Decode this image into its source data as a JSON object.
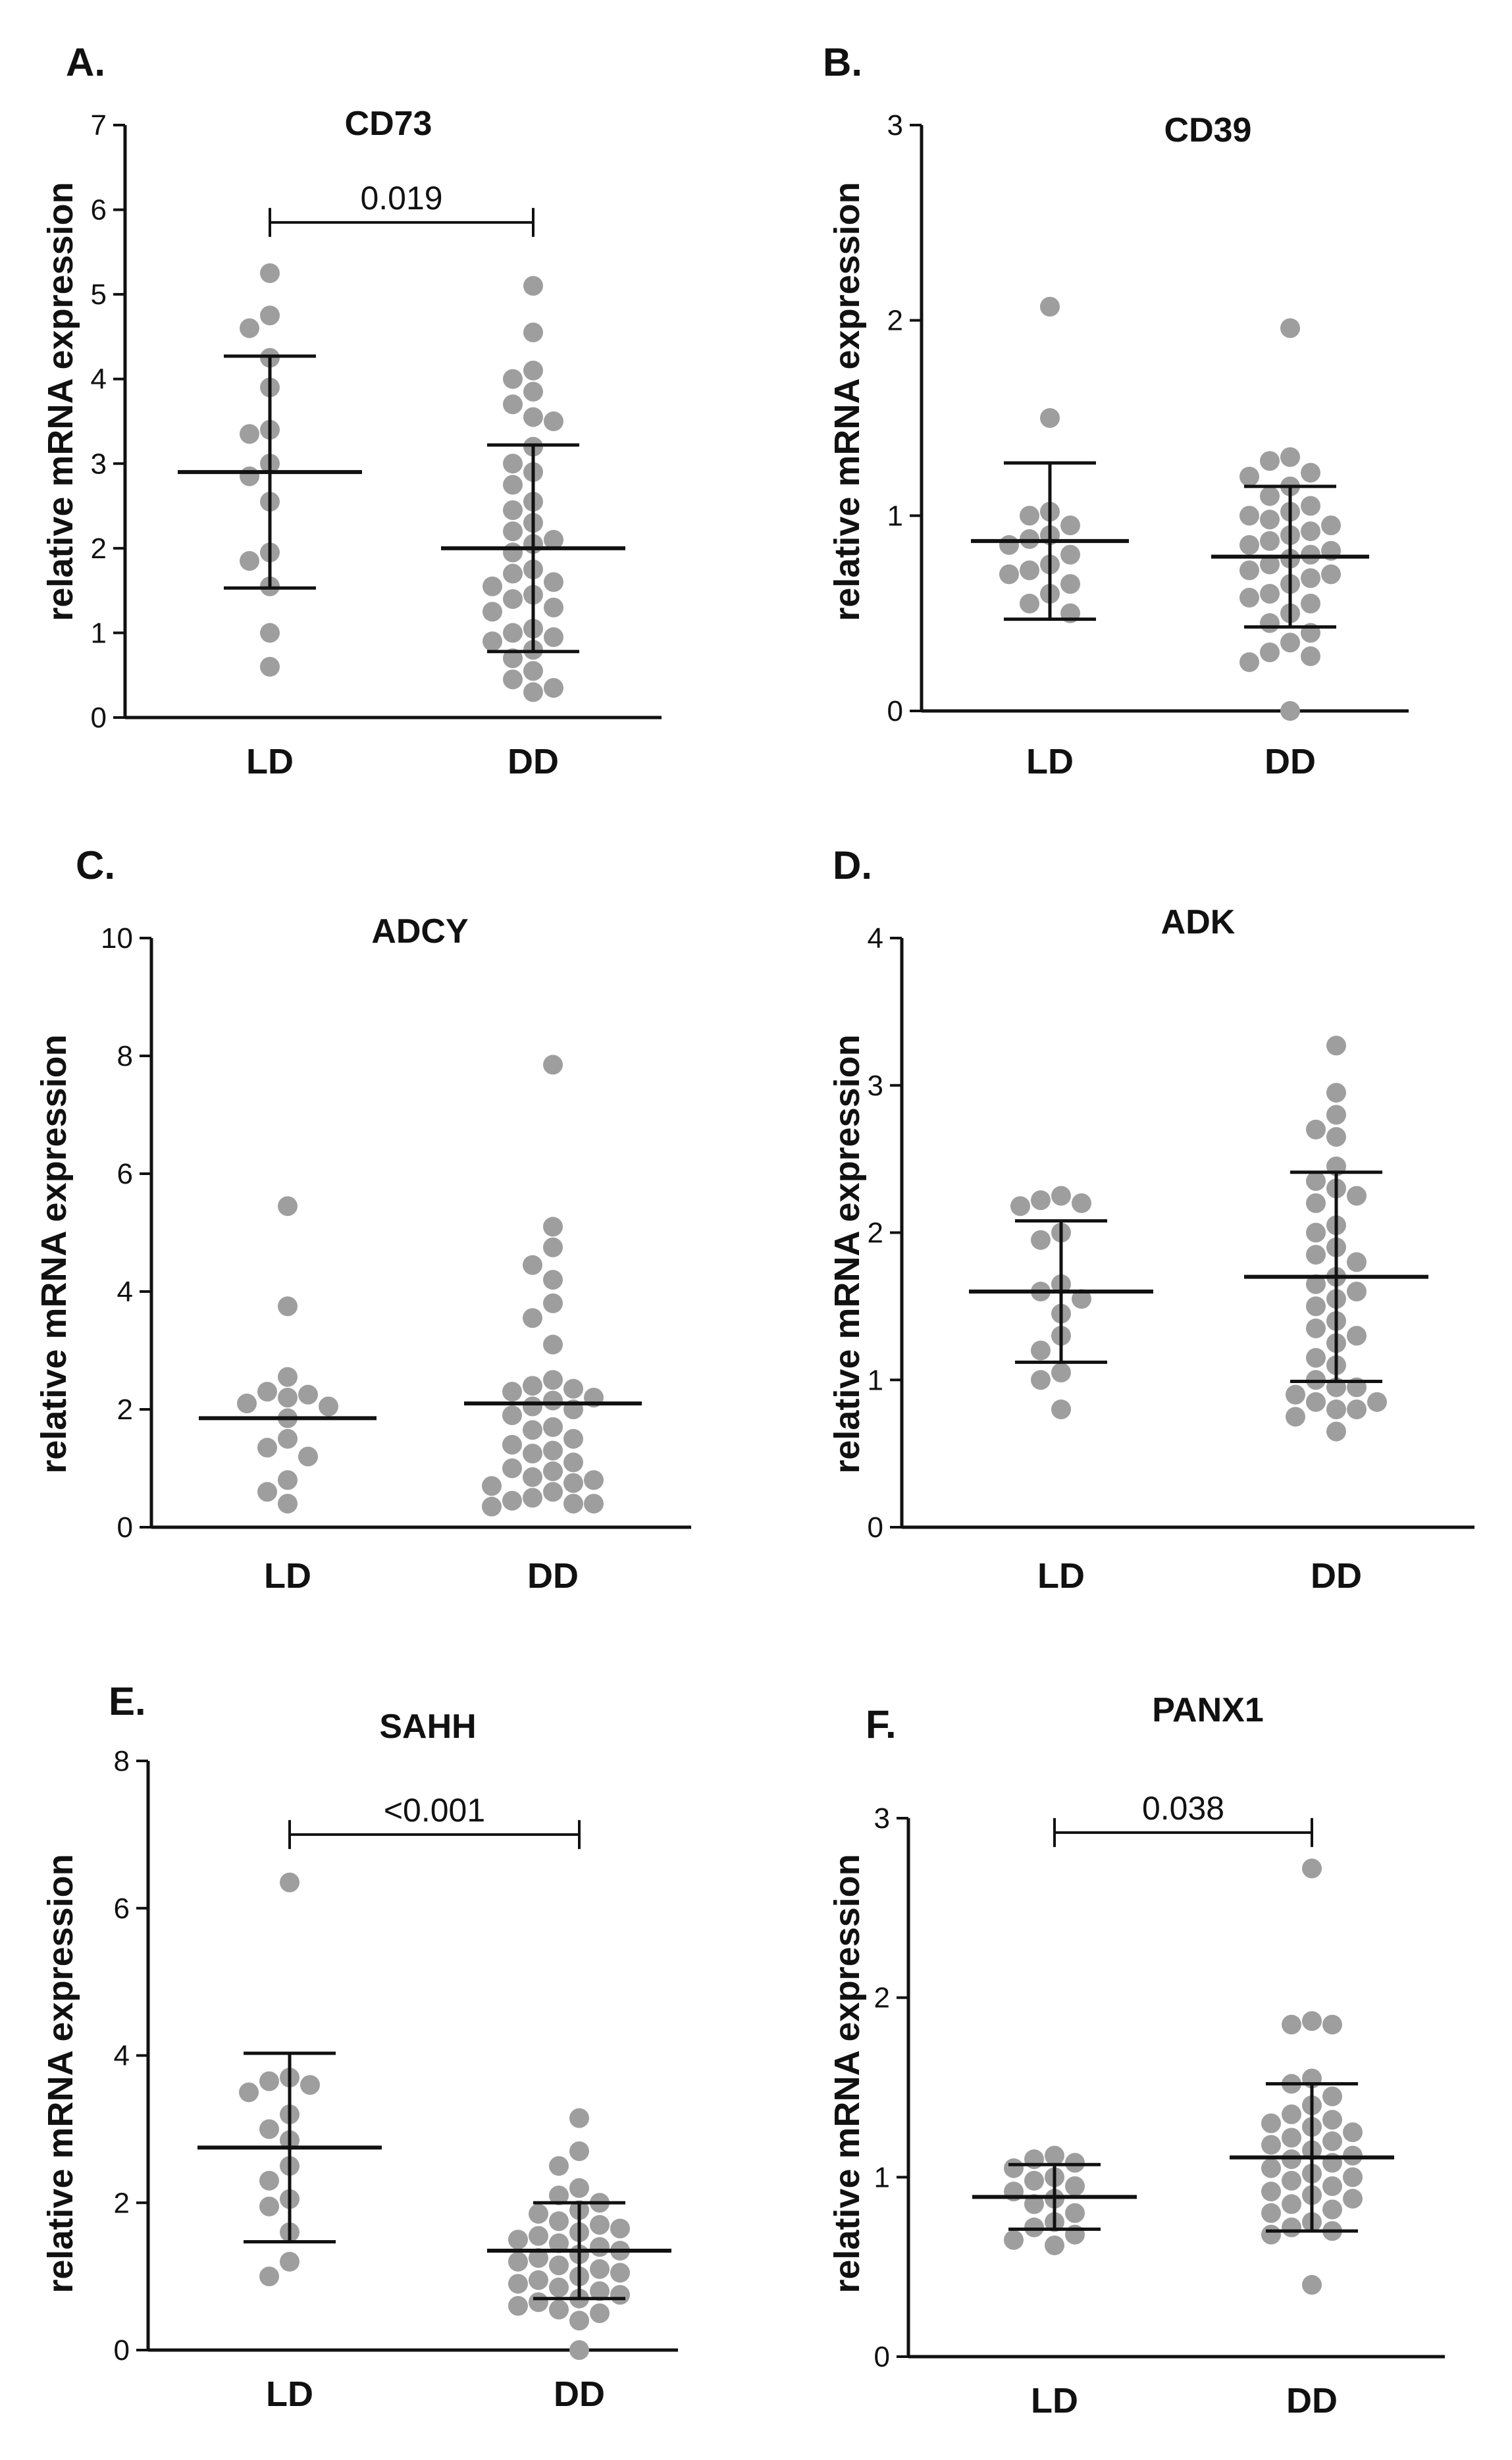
{
  "figure": {
    "background": "#ffffff",
    "point_color": "#9e9e9e",
    "line_color": "#111111"
  },
  "chart_data": [
    {
      "panel": "A.",
      "type": "scatter",
      "title": "CD73",
      "xlabel": "",
      "ylabel": "relative mRNA expression",
      "categories": [
        "LD",
        "DD"
      ],
      "ylim": [
        0,
        7
      ],
      "yticks": [
        0,
        1,
        2,
        3,
        4,
        5,
        6,
        7
      ],
      "mean": [
        2.9,
        2.0
      ],
      "sd": [
        1.37,
        1.22
      ],
      "comparison": {
        "label": "0.019",
        "y": 5.85
      },
      "points": [
        [
          5.25,
          4.75,
          4.6,
          4.25,
          3.9,
          3.4,
          3.35,
          3.0,
          2.85,
          2.55,
          1.95,
          1.85,
          1.55,
          1.0,
          0.6
        ],
        [
          5.1,
          4.55,
          4.1,
          4.0,
          3.85,
          3.7,
          3.55,
          3.5,
          3.2,
          3.0,
          2.9,
          2.75,
          2.55,
          2.45,
          2.3,
          2.2,
          2.1,
          2.05,
          1.95,
          1.75,
          1.7,
          1.6,
          1.55,
          1.45,
          1.4,
          1.3,
          1.25,
          1.05,
          1.0,
          0.95,
          0.9,
          0.8,
          0.7,
          0.55,
          0.45,
          0.35,
          0.3
        ]
      ]
    },
    {
      "panel": "B.",
      "type": "scatter",
      "title": "CD39",
      "xlabel": "",
      "ylabel": "relative mRNA expression",
      "categories": [
        "LD",
        "DD"
      ],
      "ylim": [
        0,
        3
      ],
      "yticks": [
        0,
        1,
        2,
        3
      ],
      "mean": [
        0.87,
        0.79
      ],
      "sd": [
        0.4,
        0.36
      ],
      "comparison": null,
      "points": [
        [
          2.07,
          1.5,
          1.02,
          1.0,
          0.95,
          0.9,
          0.88,
          0.85,
          0.8,
          0.75,
          0.72,
          0.7,
          0.65,
          0.6,
          0.55,
          0.5
        ],
        [
          1.96,
          1.3,
          1.28,
          1.22,
          1.2,
          1.15,
          1.1,
          1.05,
          1.02,
          1.0,
          0.98,
          0.95,
          0.92,
          0.9,
          0.87,
          0.85,
          0.82,
          0.8,
          0.78,
          0.75,
          0.72,
          0.7,
          0.68,
          0.65,
          0.6,
          0.58,
          0.55,
          0.5,
          0.45,
          0.4,
          0.35,
          0.3,
          0.28,
          0.25,
          0.0
        ]
      ]
    },
    {
      "panel": "C.",
      "type": "scatter",
      "title": "ADCY",
      "xlabel": "",
      "ylabel": "relative mRNA expression",
      "categories": [
        "LD",
        "DD"
      ],
      "ylim": [
        0,
        10
      ],
      "yticks": [
        0,
        2,
        4,
        6,
        8,
        10
      ],
      "mean": [
        1.85,
        2.1
      ],
      "sd": [
        null,
        null
      ],
      "comparison": null,
      "points": [
        [
          5.45,
          3.75,
          2.55,
          2.3,
          2.25,
          2.2,
          2.1,
          2.05,
          1.85,
          1.5,
          1.35,
          1.2,
          0.8,
          0.6,
          0.4
        ],
        [
          7.85,
          5.1,
          4.75,
          4.45,
          4.2,
          3.8,
          3.55,
          3.1,
          2.5,
          2.4,
          2.35,
          2.3,
          2.2,
          2.15,
          2.05,
          2.0,
          1.9,
          1.7,
          1.65,
          1.5,
          1.4,
          1.3,
          1.25,
          1.1,
          1.0,
          0.95,
          0.85,
          0.8,
          0.75,
          0.7,
          0.6,
          0.5,
          0.45,
          0.4,
          0.4,
          0.35
        ]
      ]
    },
    {
      "panel": "D.",
      "type": "scatter",
      "title": "ADK",
      "xlabel": "",
      "ylabel": "relative mRNA expression",
      "categories": [
        "LD",
        "DD"
      ],
      "ylim": [
        0,
        4
      ],
      "yticks": [
        0,
        1,
        2,
        3,
        4
      ],
      "mean": [
        1.6,
        1.7
      ],
      "sd": [
        0.48,
        0.71
      ],
      "comparison": null,
      "points": [
        [
          2.25,
          2.22,
          2.2,
          2.18,
          2.0,
          1.95,
          1.65,
          1.6,
          1.55,
          1.45,
          1.3,
          1.2,
          1.05,
          1.0,
          0.8
        ],
        [
          3.27,
          2.95,
          2.8,
          2.7,
          2.65,
          2.45,
          2.35,
          2.3,
          2.25,
          2.2,
          2.05,
          2.0,
          1.9,
          1.85,
          1.8,
          1.7,
          1.65,
          1.6,
          1.55,
          1.5,
          1.4,
          1.35,
          1.3,
          1.25,
          1.15,
          1.1,
          1.0,
          0.95,
          0.95,
          0.9,
          0.85,
          0.85,
          0.8,
          0.8,
          0.75,
          0.65
        ]
      ]
    },
    {
      "panel": "E.",
      "type": "scatter",
      "title": "SAHH",
      "xlabel": "",
      "ylabel": "relative mRNA expression",
      "categories": [
        "LD",
        "DD"
      ],
      "ylim": [
        0,
        8
      ],
      "yticks": [
        0,
        2,
        4,
        6,
        8
      ],
      "mean": [
        2.75,
        1.35
      ],
      "sd": [
        1.28,
        0.65
      ],
      "comparison": {
        "label": "<0.001",
        "y": 7.0
      },
      "points": [
        [
          6.35,
          3.7,
          3.65,
          3.6,
          3.5,
          3.2,
          3.0,
          2.85,
          2.5,
          2.3,
          2.05,
          1.95,
          1.6,
          1.2,
          1.0
        ],
        [
          3.15,
          2.7,
          2.5,
          2.2,
          2.1,
          2.0,
          1.9,
          1.85,
          1.75,
          1.7,
          1.65,
          1.6,
          1.55,
          1.5,
          1.45,
          1.4,
          1.35,
          1.3,
          1.25,
          1.2,
          1.15,
          1.1,
          1.05,
          1.0,
          0.95,
          0.9,
          0.85,
          0.8,
          0.75,
          0.7,
          0.65,
          0.6,
          0.55,
          0.5,
          0.4,
          0.0
        ]
      ]
    },
    {
      "panel": "F.",
      "type": "scatter",
      "title": "PANX1",
      "xlabel": "",
      "ylabel": "relative mRNA expression",
      "categories": [
        "LD",
        "DD"
      ],
      "ylim": [
        0,
        3
      ],
      "yticks": [
        0,
        1,
        2,
        3
      ],
      "mean": [
        0.89,
        1.11
      ],
      "sd": [
        0.18,
        0.41
      ],
      "comparison": {
        "label": "0.038",
        "y": 2.92
      },
      "points": [
        [
          1.12,
          1.1,
          1.08,
          1.05,
          1.0,
          0.98,
          0.95,
          0.92,
          0.88,
          0.85,
          0.8,
          0.75,
          0.72,
          0.68,
          0.65,
          0.62
        ],
        [
          2.72,
          1.87,
          1.85,
          1.85,
          1.55,
          1.52,
          1.45,
          1.4,
          1.35,
          1.32,
          1.3,
          1.28,
          1.25,
          1.22,
          1.2,
          1.18,
          1.15,
          1.12,
          1.1,
          1.08,
          1.05,
          1.02,
          1.0,
          0.98,
          0.95,
          0.92,
          0.9,
          0.88,
          0.85,
          0.82,
          0.8,
          0.75,
          0.72,
          0.7,
          0.68,
          0.4
        ]
      ]
    }
  ]
}
